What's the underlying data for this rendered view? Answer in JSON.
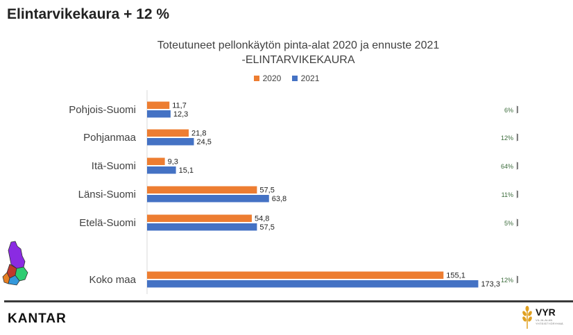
{
  "page_title": "Elintarvikekaura + 12 %",
  "footer": {
    "kantar_logo": "KANTAR",
    "vyr_logo": "VYR",
    "vyr_sub_line1": "VILJA-ALAN",
    "vyr_sub_line2": "YHTEISTYÖRYHMÄ"
  },
  "colors": {
    "series_2020": "#ED7D31",
    "series_2021": "#4472C4",
    "axis": "#d9d9d9"
  },
  "chart_data": {
    "type": "bar",
    "orientation": "horizontal",
    "title_line1": "Toteutuneet pellonkäytön pinta-alat 2020 ja ennuste 2021",
    "title_line2": "-ELINTARVIKEKAURA",
    "categories": [
      "Pohjois-Suomi",
      "Pohjanmaa",
      "Itä-Suomi",
      "Länsi-Suomi",
      "Etelä-Suomi",
      "Koko maa"
    ],
    "series": [
      {
        "name": "2020",
        "color": "#ED7D31",
        "values": [
          11.7,
          21.8,
          9.3,
          57.5,
          54.8,
          155.1
        ],
        "labels": [
          "11,7",
          "21,8",
          "9,3",
          "57,5",
          "54,8",
          "155,1"
        ]
      },
      {
        "name": "2021",
        "color": "#4472C4",
        "values": [
          12.3,
          24.5,
          15.1,
          63.8,
          57.5,
          173.3
        ],
        "labels": [
          "12,3",
          "24,5",
          "15,1",
          "63,8",
          "57,5",
          "173,3"
        ]
      }
    ],
    "changes": [
      "6%",
      "12%",
      "64%",
      "11%",
      "5%",
      "12%"
    ],
    "change_bar_fraction": [
      0.06,
      0.12,
      0.64,
      0.11,
      0.05,
      0.12
    ],
    "xlim": [
      0,
      200
    ],
    "legend_position": "top",
    "grid": false
  }
}
